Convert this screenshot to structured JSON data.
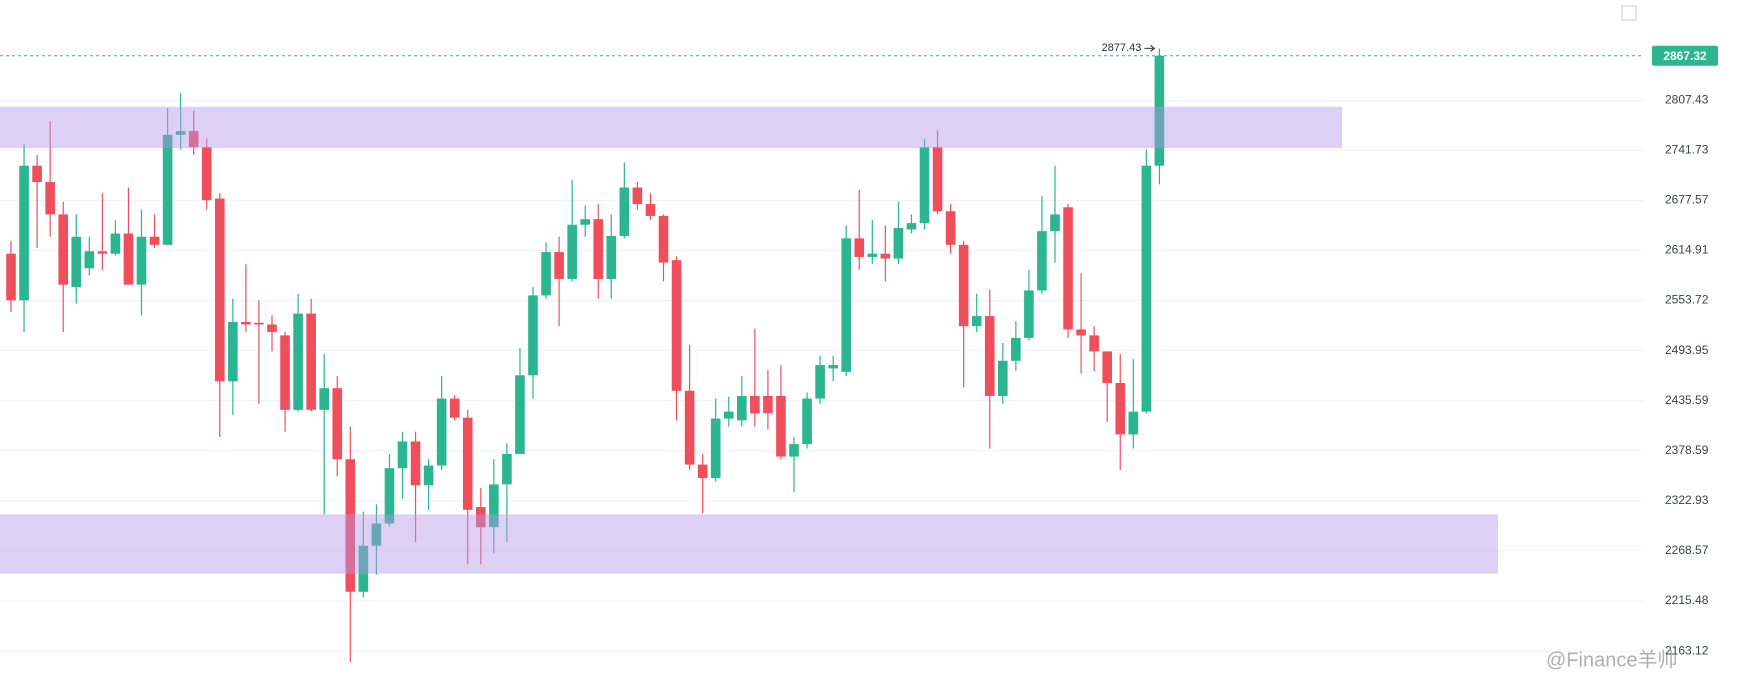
{
  "chart_data": {
    "type": "candlestick",
    "log": true,
    "grid": true,
    "up_color": "#2bb591",
    "down_color": "#ef4f5c",
    "zone_color": "#b596e8",
    "ylim": [
      2132,
      2944
    ],
    "yticks": [
      2163.12,
      2215.48,
      2268.57,
      2322.93,
      2378.59,
      2435.59,
      2493.95,
      2553.72,
      2614.91,
      2677.57,
      2741.73,
      2807.43
    ],
    "zones": [
      {
        "low": 2744.6,
        "high": 2799
      },
      {
        "low": 2244,
        "high": 2308
      }
    ],
    "open": [
      2611,
      2554,
      2722,
      2701,
      2660,
      2570,
      2593,
      2614,
      2611,
      2636,
      2573,
      2632,
      2622,
      2762,
      2767,
      2746,
      2680,
      2458,
      2528,
      2527,
      2525,
      2512,
      2425,
      2538,
      2425,
      2450,
      2369,
      2225,
      2274,
      2298,
      2359,
      2389,
      2340,
      2362,
      2438,
      2416,
      2316,
      2294,
      2341,
      2375,
      2465,
      2560,
      2613,
      2580,
      2647,
      2654,
      2580,
      2633,
      2694,
      2673,
      2658,
      2603,
      2447,
      2363,
      2348,
      2415,
      2413,
      2441,
      2441,
      2441,
      2372,
      2386,
      2438,
      2473,
      2469,
      2630,
      2607,
      2611,
      2605,
      2641,
      2649,
      2746,
      2664,
      2622,
      2523,
      2535,
      2441,
      2482,
      2509,
      2566,
      2639,
      2669,
      2519,
      2512,
      2493,
      2456,
      2397,
      2423,
      2722
    ],
    "high": [
      2627,
      2750,
      2736,
      2780,
      2676,
      2660,
      2632,
      2687,
      2653,
      2694,
      2666,
      2660,
      2797,
      2817,
      2794,
      2757,
      2687,
      2556,
      2598,
      2554,
      2536,
      2516,
      2562,
      2556,
      2490,
      2464,
      2406,
      2311,
      2319,
      2375,
      2400,
      2400,
      2369,
      2464,
      2442,
      2425,
      2337,
      2369,
      2387,
      2497,
      2570,
      2625,
      2632,
      2704,
      2671,
      2673,
      2660,
      2726,
      2701,
      2687,
      2660,
      2608,
      2501,
      2375,
      2438,
      2440,
      2464,
      2520,
      2471,
      2477,
      2394,
      2445,
      2488,
      2488,
      2646,
      2691,
      2653,
      2646,
      2676,
      2660,
      2757,
      2768,
      2673,
      2627,
      2562,
      2567,
      2503,
      2529,
      2591,
      2683,
      2722,
      2673,
      2587,
      2523,
      2493,
      2490,
      2484,
      2743,
      2877.43
    ],
    "low": [
      2540,
      2516,
      2618,
      2632,
      2516,
      2550,
      2584,
      2591,
      2609,
      2573,
      2536,
      2618,
      2622,
      2743,
      2736,
      2666,
      2394,
      2419,
      2516,
      2432,
      2493,
      2400,
      2423,
      2423,
      2308,
      2350,
      2152,
      2219,
      2243,
      2295,
      2325,
      2278,
      2313,
      2357,
      2413,
      2254,
      2254,
      2266,
      2278,
      2375,
      2438,
      2556,
      2523,
      2577,
      2632,
      2556,
      2556,
      2630,
      2666,
      2653,
      2577,
      2413,
      2357,
      2309,
      2344,
      2406,
      2406,
      2406,
      2403,
      2369,
      2332,
      2381,
      2432,
      2458,
      2464,
      2591,
      2598,
      2577,
      2598,
      2636,
      2641,
      2660,
      2611,
      2451,
      2516,
      2381,
      2432,
      2470,
      2506,
      2562,
      2600,
      2509,
      2467,
      2470,
      2411,
      2357,
      2381,
      2421,
      2698
    ],
    "close": [
      2554,
      2722,
      2701,
      2660,
      2573,
      2632,
      2614,
      2611,
      2636,
      2573,
      2632,
      2622,
      2762,
      2767,
      2746,
      2678,
      2458,
      2528,
      2525,
      2525,
      2516,
      2425,
      2538,
      2425,
      2450,
      2369,
      2225,
      2274,
      2298,
      2359,
      2389,
      2340,
      2362,
      2438,
      2416,
      2313,
      2294,
      2341,
      2375,
      2465,
      2560,
      2613,
      2580,
      2647,
      2654,
      2580,
      2633,
      2694,
      2673,
      2658,
      2600,
      2447,
      2363,
      2348,
      2415,
      2423,
      2441,
      2421,
      2421,
      2372,
      2386,
      2438,
      2477,
      2477,
      2630,
      2607,
      2611,
      2605,
      2643,
      2649,
      2746,
      2664,
      2622,
      2523,
      2535,
      2441,
      2482,
      2509,
      2566,
      2639,
      2660,
      2519,
      2512,
      2493,
      2456,
      2397,
      2423,
      2722,
      2867.32
    ],
    "watermark": "@Finance羊帅"
  }
}
